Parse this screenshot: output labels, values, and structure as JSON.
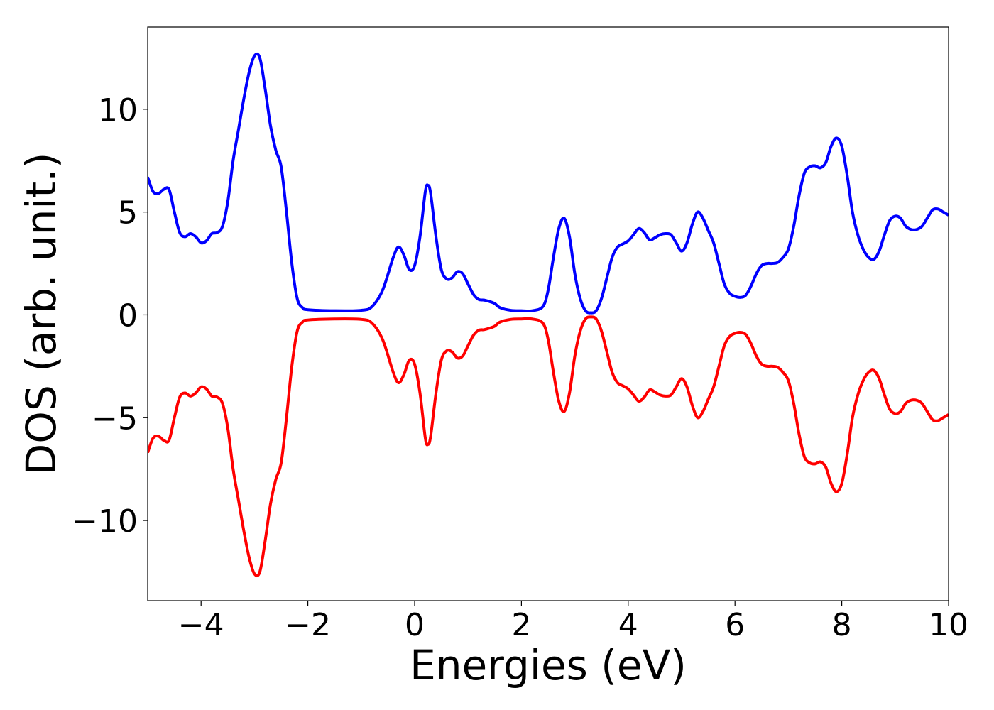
{
  "chart_data": {
    "type": "line",
    "title": "",
    "xlabel": "Energies (eV)",
    "ylabel": "DOS (arb. unit.)",
    "xlim": [
      -5,
      10
    ],
    "ylim": [
      -13.9,
      14.0
    ],
    "grid": false,
    "legend": "none",
    "x_ticks": [
      -4,
      -2,
      0,
      2,
      4,
      6,
      8,
      10
    ],
    "x_tick_labels": [
      "−4",
      "−2",
      "0",
      "2",
      "4",
      "6",
      "8",
      "10"
    ],
    "y_ticks": [
      -10,
      -5,
      0,
      5,
      10
    ],
    "y_tick_labels": [
      "−10",
      "−5",
      "0",
      "5",
      "10"
    ],
    "series": [
      {
        "color": "#0000ff",
        "points": [
          [
            -5.0,
            6.7
          ],
          [
            -4.9,
            6.0
          ],
          [
            -4.8,
            5.9
          ],
          [
            -4.7,
            6.1
          ],
          [
            -4.6,
            6.1
          ],
          [
            -4.5,
            5.0
          ],
          [
            -4.4,
            4.0
          ],
          [
            -4.3,
            3.8
          ],
          [
            -4.2,
            3.95
          ],
          [
            -4.1,
            3.8
          ],
          [
            -4.0,
            3.5
          ],
          [
            -3.9,
            3.6
          ],
          [
            -3.8,
            3.95
          ],
          [
            -3.7,
            4.0
          ],
          [
            -3.6,
            4.3
          ],
          [
            -3.5,
            5.5
          ],
          [
            -3.4,
            7.5
          ],
          [
            -3.3,
            9.0
          ],
          [
            -3.2,
            10.5
          ],
          [
            -3.1,
            11.8
          ],
          [
            -3.0,
            12.6
          ],
          [
            -2.9,
            12.5
          ],
          [
            -2.8,
            11.0
          ],
          [
            -2.7,
            9.2
          ],
          [
            -2.6,
            8.0
          ],
          [
            -2.5,
            7.2
          ],
          [
            -2.4,
            5.0
          ],
          [
            -2.3,
            2.5
          ],
          [
            -2.2,
            0.8
          ],
          [
            -2.1,
            0.35
          ],
          [
            -2.0,
            0.25
          ],
          [
            -1.5,
            0.2
          ],
          [
            -1.0,
            0.22
          ],
          [
            -0.8,
            0.4
          ],
          [
            -0.6,
            1.2
          ],
          [
            -0.4,
            2.8
          ],
          [
            -0.3,
            3.3
          ],
          [
            -0.2,
            2.9
          ],
          [
            -0.1,
            2.2
          ],
          [
            0.0,
            2.4
          ],
          [
            0.1,
            3.8
          ],
          [
            0.2,
            6.0
          ],
          [
            0.25,
            6.3
          ],
          [
            0.3,
            5.9
          ],
          [
            0.4,
            3.8
          ],
          [
            0.5,
            2.2
          ],
          [
            0.6,
            1.75
          ],
          [
            0.7,
            1.8
          ],
          [
            0.8,
            2.1
          ],
          [
            0.9,
            2.0
          ],
          [
            1.0,
            1.5
          ],
          [
            1.1,
            1.0
          ],
          [
            1.2,
            0.75
          ],
          [
            1.3,
            0.72
          ],
          [
            1.4,
            0.65
          ],
          [
            1.5,
            0.55
          ],
          [
            1.6,
            0.35
          ],
          [
            1.8,
            0.22
          ],
          [
            2.0,
            0.2
          ],
          [
            2.2,
            0.2
          ],
          [
            2.4,
            0.4
          ],
          [
            2.5,
            1.2
          ],
          [
            2.6,
            2.8
          ],
          [
            2.7,
            4.2
          ],
          [
            2.8,
            4.7
          ],
          [
            2.9,
            3.8
          ],
          [
            3.0,
            2.0
          ],
          [
            3.1,
            0.8
          ],
          [
            3.2,
            0.2
          ],
          [
            3.3,
            0.1
          ],
          [
            3.4,
            0.2
          ],
          [
            3.5,
            0.8
          ],
          [
            3.6,
            1.8
          ],
          [
            3.7,
            2.8
          ],
          [
            3.8,
            3.3
          ],
          [
            3.9,
            3.45
          ],
          [
            4.0,
            3.6
          ],
          [
            4.1,
            3.9
          ],
          [
            4.2,
            4.2
          ],
          [
            4.3,
            4.0
          ],
          [
            4.4,
            3.65
          ],
          [
            4.5,
            3.75
          ],
          [
            4.6,
            3.9
          ],
          [
            4.7,
            3.95
          ],
          [
            4.8,
            3.9
          ],
          [
            4.9,
            3.5
          ],
          [
            5.0,
            3.1
          ],
          [
            5.1,
            3.5
          ],
          [
            5.2,
            4.4
          ],
          [
            5.3,
            5.0
          ],
          [
            5.4,
            4.7
          ],
          [
            5.5,
            4.1
          ],
          [
            5.6,
            3.5
          ],
          [
            5.7,
            2.5
          ],
          [
            5.8,
            1.5
          ],
          [
            5.9,
            1.05
          ],
          [
            6.0,
            0.9
          ],
          [
            6.1,
            0.85
          ],
          [
            6.2,
            0.95
          ],
          [
            6.3,
            1.4
          ],
          [
            6.4,
            2.0
          ],
          [
            6.5,
            2.4
          ],
          [
            6.6,
            2.5
          ],
          [
            6.7,
            2.5
          ],
          [
            6.8,
            2.55
          ],
          [
            6.9,
            2.8
          ],
          [
            7.0,
            3.2
          ],
          [
            7.1,
            4.3
          ],
          [
            7.2,
            5.8
          ],
          [
            7.3,
            6.9
          ],
          [
            7.4,
            7.2
          ],
          [
            7.5,
            7.25
          ],
          [
            7.6,
            7.15
          ],
          [
            7.7,
            7.4
          ],
          [
            7.8,
            8.2
          ],
          [
            7.9,
            8.6
          ],
          [
            8.0,
            8.2
          ],
          [
            8.1,
            6.8
          ],
          [
            8.2,
            5.0
          ],
          [
            8.3,
            3.9
          ],
          [
            8.4,
            3.2
          ],
          [
            8.5,
            2.8
          ],
          [
            8.6,
            2.7
          ],
          [
            8.7,
            3.1
          ],
          [
            8.8,
            3.9
          ],
          [
            8.9,
            4.6
          ],
          [
            9.0,
            4.8
          ],
          [
            9.1,
            4.7
          ],
          [
            9.2,
            4.3
          ],
          [
            9.3,
            4.15
          ],
          [
            9.4,
            4.15
          ],
          [
            9.5,
            4.3
          ],
          [
            9.6,
            4.7
          ],
          [
            9.7,
            5.1
          ],
          [
            9.8,
            5.15
          ],
          [
            9.9,
            5.0
          ],
          [
            10.0,
            4.85
          ]
        ]
      },
      {
        "color": "#ff0000",
        "points": [
          [
            -5.0,
            -6.7
          ],
          [
            -4.9,
            -6.0
          ],
          [
            -4.8,
            -5.9
          ],
          [
            -4.7,
            -6.1
          ],
          [
            -4.6,
            -6.1
          ],
          [
            -4.5,
            -5.0
          ],
          [
            -4.4,
            -4.0
          ],
          [
            -4.3,
            -3.8
          ],
          [
            -4.2,
            -3.95
          ],
          [
            -4.1,
            -3.8
          ],
          [
            -4.0,
            -3.5
          ],
          [
            -3.9,
            -3.6
          ],
          [
            -3.8,
            -3.95
          ],
          [
            -3.7,
            -4.0
          ],
          [
            -3.6,
            -4.3
          ],
          [
            -3.5,
            -5.5
          ],
          [
            -3.4,
            -7.5
          ],
          [
            -3.3,
            -9.0
          ],
          [
            -3.2,
            -10.5
          ],
          [
            -3.1,
            -11.8
          ],
          [
            -3.0,
            -12.6
          ],
          [
            -2.9,
            -12.5
          ],
          [
            -2.8,
            -11.0
          ],
          [
            -2.7,
            -9.2
          ],
          [
            -2.6,
            -8.0
          ],
          [
            -2.5,
            -7.2
          ],
          [
            -2.4,
            -5.0
          ],
          [
            -2.3,
            -2.5
          ],
          [
            -2.2,
            -0.8
          ],
          [
            -2.1,
            -0.35
          ],
          [
            -2.0,
            -0.25
          ],
          [
            -1.5,
            -0.2
          ],
          [
            -1.0,
            -0.22
          ],
          [
            -0.8,
            -0.4
          ],
          [
            -0.6,
            -1.2
          ],
          [
            -0.4,
            -2.8
          ],
          [
            -0.3,
            -3.3
          ],
          [
            -0.2,
            -2.9
          ],
          [
            -0.1,
            -2.2
          ],
          [
            0.0,
            -2.4
          ],
          [
            0.1,
            -3.8
          ],
          [
            0.2,
            -6.0
          ],
          [
            0.25,
            -6.3
          ],
          [
            0.3,
            -5.9
          ],
          [
            0.4,
            -3.8
          ],
          [
            0.5,
            -2.2
          ],
          [
            0.6,
            -1.75
          ],
          [
            0.7,
            -1.8
          ],
          [
            0.8,
            -2.1
          ],
          [
            0.9,
            -2.0
          ],
          [
            1.0,
            -1.5
          ],
          [
            1.1,
            -1.0
          ],
          [
            1.2,
            -0.75
          ],
          [
            1.3,
            -0.72
          ],
          [
            1.4,
            -0.65
          ],
          [
            1.5,
            -0.55
          ],
          [
            1.6,
            -0.35
          ],
          [
            1.8,
            -0.22
          ],
          [
            2.0,
            -0.2
          ],
          [
            2.2,
            -0.2
          ],
          [
            2.4,
            -0.4
          ],
          [
            2.5,
            -1.2
          ],
          [
            2.6,
            -2.8
          ],
          [
            2.7,
            -4.2
          ],
          [
            2.8,
            -4.7
          ],
          [
            2.9,
            -3.8
          ],
          [
            3.0,
            -2.0
          ],
          [
            3.1,
            -0.8
          ],
          [
            3.2,
            -0.2
          ],
          [
            3.3,
            -0.1
          ],
          [
            3.4,
            -0.2
          ],
          [
            3.5,
            -0.8
          ],
          [
            3.6,
            -1.8
          ],
          [
            3.7,
            -2.8
          ],
          [
            3.8,
            -3.3
          ],
          [
            3.9,
            -3.45
          ],
          [
            4.0,
            -3.6
          ],
          [
            4.1,
            -3.9
          ],
          [
            4.2,
            -4.2
          ],
          [
            4.3,
            -4.0
          ],
          [
            4.4,
            -3.65
          ],
          [
            4.5,
            -3.75
          ],
          [
            4.6,
            -3.9
          ],
          [
            4.7,
            -3.95
          ],
          [
            4.8,
            -3.9
          ],
          [
            4.9,
            -3.5
          ],
          [
            5.0,
            -3.1
          ],
          [
            5.1,
            -3.5
          ],
          [
            5.2,
            -4.4
          ],
          [
            5.3,
            -5.0
          ],
          [
            5.4,
            -4.7
          ],
          [
            5.5,
            -4.1
          ],
          [
            5.6,
            -3.5
          ],
          [
            5.7,
            -2.5
          ],
          [
            5.8,
            -1.5
          ],
          [
            5.9,
            -1.05
          ],
          [
            6.0,
            -0.9
          ],
          [
            6.1,
            -0.85
          ],
          [
            6.2,
            -0.95
          ],
          [
            6.3,
            -1.4
          ],
          [
            6.4,
            -2.0
          ],
          [
            6.5,
            -2.4
          ],
          [
            6.6,
            -2.5
          ],
          [
            6.7,
            -2.5
          ],
          [
            6.8,
            -2.55
          ],
          [
            6.9,
            -2.8
          ],
          [
            7.0,
            -3.2
          ],
          [
            7.1,
            -4.3
          ],
          [
            7.2,
            -5.8
          ],
          [
            7.3,
            -6.9
          ],
          [
            7.4,
            -7.2
          ],
          [
            7.5,
            -7.25
          ],
          [
            7.6,
            -7.15
          ],
          [
            7.7,
            -7.4
          ],
          [
            7.8,
            -8.2
          ],
          [
            7.9,
            -8.6
          ],
          [
            8.0,
            -8.2
          ],
          [
            8.1,
            -6.8
          ],
          [
            8.2,
            -5.0
          ],
          [
            8.3,
            -3.9
          ],
          [
            8.4,
            -3.2
          ],
          [
            8.5,
            -2.8
          ],
          [
            8.6,
            -2.7
          ],
          [
            8.7,
            -3.1
          ],
          [
            8.8,
            -3.9
          ],
          [
            8.9,
            -4.6
          ],
          [
            9.0,
            -4.8
          ],
          [
            9.1,
            -4.7
          ],
          [
            9.2,
            -4.3
          ],
          [
            9.3,
            -4.15
          ],
          [
            9.4,
            -4.15
          ],
          [
            9.5,
            -4.3
          ],
          [
            9.6,
            -4.7
          ],
          [
            9.7,
            -5.1
          ],
          [
            9.8,
            -5.15
          ],
          [
            9.9,
            -5.0
          ],
          [
            10.0,
            -4.85
          ]
        ]
      }
    ]
  }
}
